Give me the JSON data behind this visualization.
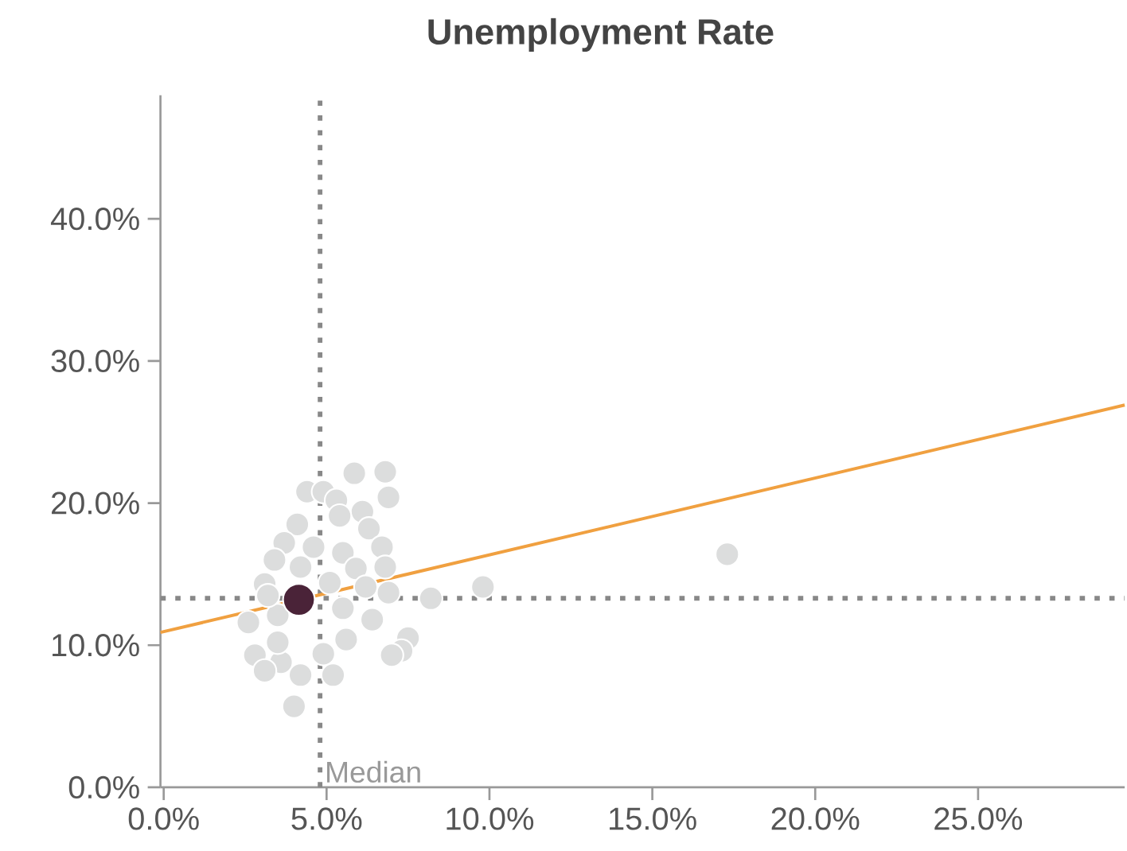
{
  "chart_data": {
    "type": "scatter",
    "title": "Unemployment Rate",
    "xlim": [
      -0.1,
      29.5
    ],
    "ylim": [
      0,
      48.7
    ],
    "xticks": [
      {
        "value": 0,
        "label": "0.0%"
      },
      {
        "value": 5,
        "label": "5.0%"
      },
      {
        "value": 10,
        "label": "10.0%"
      },
      {
        "value": 15,
        "label": "15.0%"
      },
      {
        "value": 20,
        "label": "20.0%"
      },
      {
        "value": 25,
        "label": "25.0%"
      }
    ],
    "yticks": [
      {
        "value": 0,
        "label": "0.0%"
      },
      {
        "value": 10,
        "label": "10.0%"
      },
      {
        "value": 20,
        "label": "20.0%"
      },
      {
        "value": 30,
        "label": "30.0%"
      },
      {
        "value": 40,
        "label": "40.0%"
      }
    ],
    "grid": false,
    "series": [
      {
        "marker": "circle",
        "color": "#dcdddd",
        "x": [
          5.85,
          6.8,
          4.4,
          4.9,
          5.3,
          6.9,
          6.1,
          4.1,
          5.4,
          6.3,
          3.7,
          4.6,
          5.5,
          6.7,
          3.4,
          4.2,
          5.9,
          6.8,
          3.1,
          5.1,
          6.2,
          8.2,
          9.8,
          2.6,
          3.5,
          5.5,
          6.4,
          5.6,
          7.5,
          2.8,
          3.6,
          4.9,
          7.3,
          3.1,
          4.2,
          5.2,
          7.0,
          4.0,
          6.9,
          3.2,
          3.5,
          17.3
        ],
        "values": [
          22.1,
          22.2,
          20.8,
          20.8,
          20.2,
          20.4,
          19.4,
          18.5,
          19.1,
          18.2,
          17.2,
          16.9,
          16.5,
          16.9,
          16.0,
          15.5,
          15.4,
          15.5,
          14.3,
          14.4,
          14.1,
          13.3,
          14.1,
          11.6,
          12.1,
          12.6,
          11.8,
          10.4,
          10.5,
          9.3,
          8.8,
          9.4,
          9.6,
          8.2,
          7.9,
          7.9,
          9.3,
          5.7,
          13.7,
          13.5,
          10.2,
          16.4
        ]
      },
      {
        "type": "line",
        "marker": "none",
        "color": "#f0a040",
        "x": [
          -0.1,
          29.5
        ],
        "values": [
          10.9,
          26.9
        ]
      },
      {
        "marker": "circle",
        "color": "#4a2338",
        "x": [
          4.15
        ],
        "values": [
          13.2
        ]
      }
    ],
    "ref_lines": [
      {
        "axis": "x",
        "value": 4.8,
        "label": "Median",
        "color": "#888888",
        "line_style": "dotted"
      },
      {
        "axis": "y",
        "value": 13.3,
        "color": "#888888",
        "line_style": "dotted"
      }
    ]
  }
}
